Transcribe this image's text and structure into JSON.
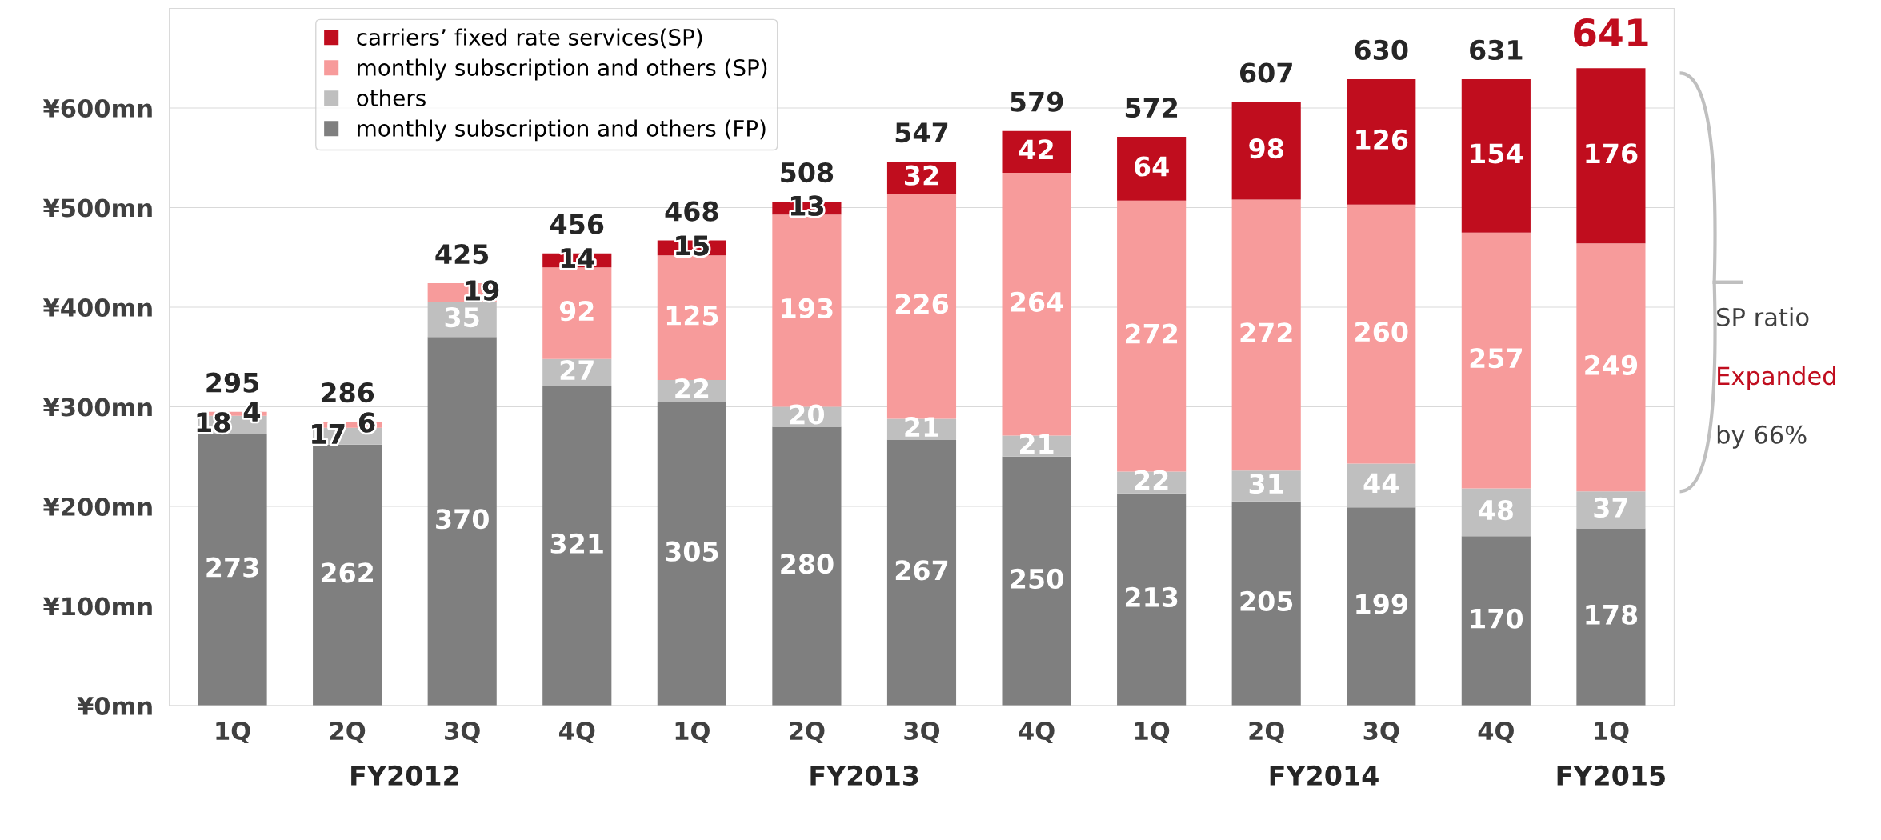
{
  "chart_data": {
    "type": "bar",
    "stacked": true,
    "categories": [
      "1Q",
      "2Q",
      "3Q",
      "4Q",
      "1Q",
      "2Q",
      "3Q",
      "4Q",
      "1Q",
      "2Q",
      "3Q",
      "4Q",
      "1Q"
    ],
    "series": [
      {
        "name": "monthly subscription and others (FP)",
        "color": "#7f7f7f",
        "values": [
          273,
          262,
          370,
          321,
          305,
          280,
          267,
          250,
          213,
          205,
          199,
          170,
          178
        ]
      },
      {
        "name": "others",
        "color": "#bfbfbf",
        "values": [
          18,
          17,
          35,
          27,
          22,
          20,
          21,
          21,
          22,
          31,
          44,
          48,
          37
        ]
      },
      {
        "name": "monthly subscription and others (SP)",
        "color": "#f79b9b",
        "values": [
          4,
          6,
          19,
          92,
          125,
          193,
          226,
          264,
          272,
          272,
          260,
          257,
          249
        ]
      },
      {
        "name": "carriers’ fixed rate services(SP)",
        "color": "#c00d1e",
        "values": [
          null,
          null,
          null,
          14,
          15,
          13,
          32,
          42,
          64,
          98,
          126,
          154,
          176
        ]
      }
    ],
    "data_labels": true,
    "totals": [
      "295",
      "286",
      "425",
      "456",
      "468",
      "508",
      "547",
      "579",
      "572",
      "607",
      "630",
      "631",
      "641"
    ],
    "ylim": [
      0,
      700
    ],
    "yticks": [
      {
        "value": 0,
        "label": "¥0mn"
      },
      {
        "value": 100,
        "label": "¥100mn"
      },
      {
        "value": 200,
        "label": "¥200mn"
      },
      {
        "value": 300,
        "label": "¥300mn"
      },
      {
        "value": 400,
        "label": "¥400mn"
      },
      {
        "value": 500,
        "label": "¥500mn"
      },
      {
        "value": 600,
        "label": "¥600mn"
      }
    ],
    "grid": "y",
    "legend": "top left",
    "annotations": [
      "FY2012",
      "FY2013",
      "FY2014",
      "FY2015",
      "SP ratio",
      "Expanded",
      "by 66%"
    ]
  }
}
